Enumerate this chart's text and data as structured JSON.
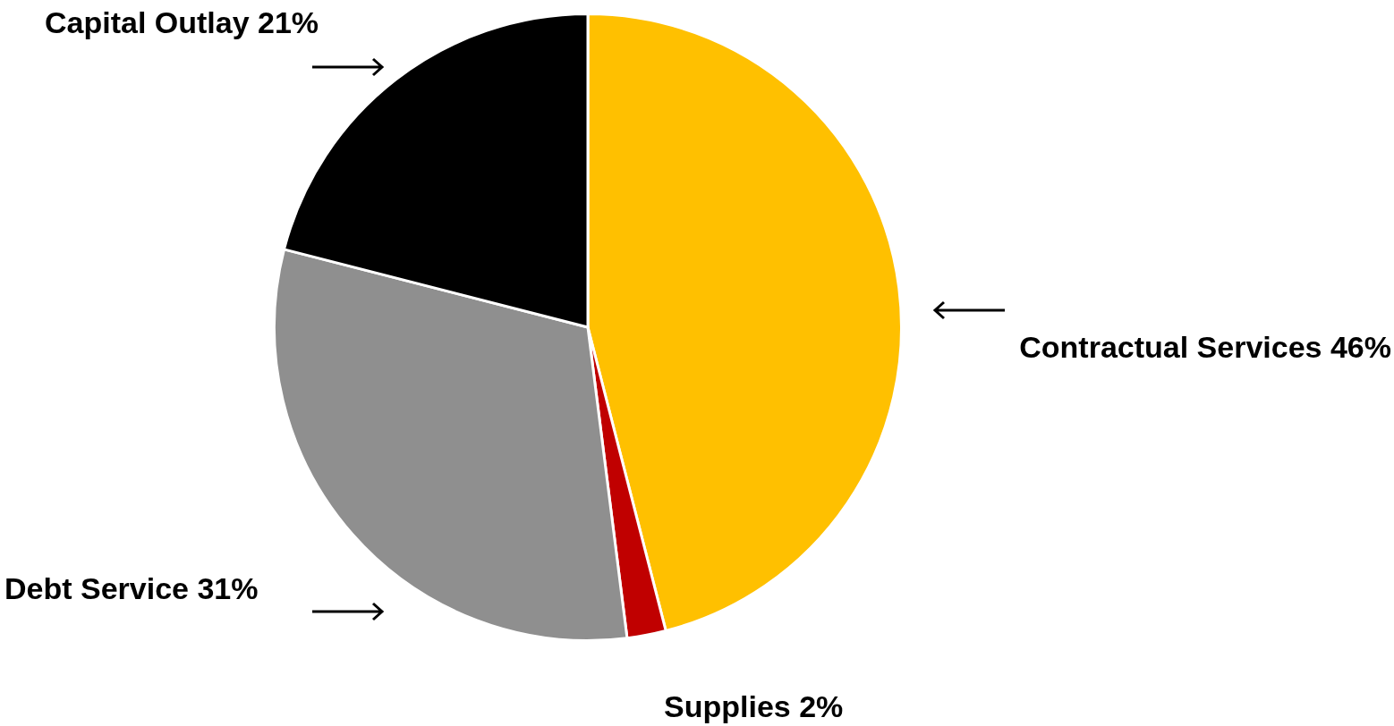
{
  "chart_data": {
    "type": "pie",
    "categories": [
      "Contractual Services",
      "Supplies",
      "Debt Service",
      "Capital Outlay"
    ],
    "values": [
      46,
      2,
      31,
      21
    ],
    "value_labels": [
      "46%",
      "2%",
      "31%",
      "21%"
    ],
    "colors": [
      "#ffc000",
      "#c00000",
      "#8f8f8f",
      "#000000"
    ],
    "legend": false
  }
}
